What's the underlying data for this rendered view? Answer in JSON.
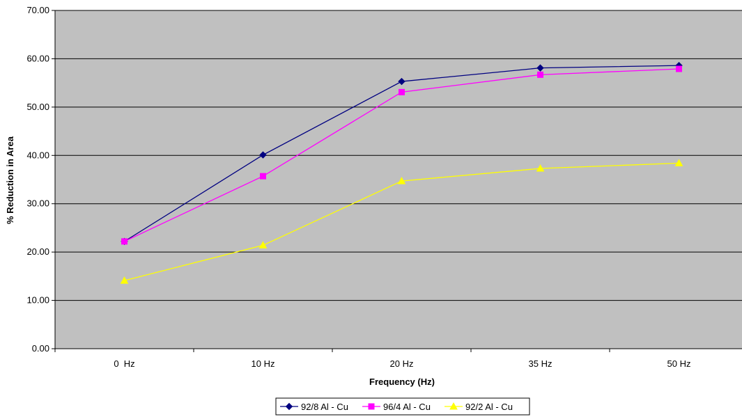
{
  "chart_data": {
    "type": "line",
    "title": "",
    "xlabel": "Frequency (Hz)",
    "ylabel": "% Reduction in Area",
    "categories": [
      "0  Hz",
      "10 Hz",
      "20 Hz",
      "35 Hz",
      "50 Hz"
    ],
    "ylim": [
      0,
      70
    ],
    "yticks": [
      "0.00",
      "10.00",
      "20.00",
      "30.00",
      "40.00",
      "50.00",
      "60.00",
      "70.00"
    ],
    "plot_background": "#c0c0c0",
    "grid": true,
    "legend_position": "bottom",
    "series": [
      {
        "name": "92/8 Al - Cu",
        "color": "#000080",
        "marker": "diamond",
        "values": [
          22.2,
          40.1,
          55.3,
          58.1,
          58.6
        ]
      },
      {
        "name": "96/4 Al - Cu",
        "color": "#ff00ff",
        "marker": "square",
        "values": [
          22.2,
          35.7,
          53.1,
          56.7,
          57.9
        ]
      },
      {
        "name": "92/2 Al - Cu",
        "color": "#ffff00",
        "marker": "triangle",
        "values": [
          14.1,
          21.4,
          34.7,
          37.3,
          38.4
        ]
      }
    ]
  }
}
